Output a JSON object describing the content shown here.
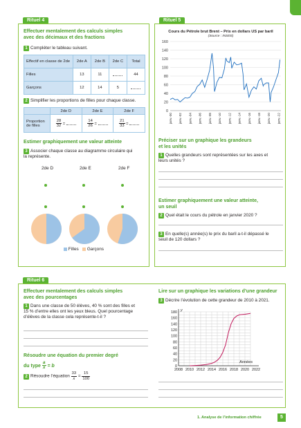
{
  "rituel4": {
    "tag": "Rituel 4",
    "title_line1": "Effectuer mentalement des calculs simples",
    "title_line2": "avec des décimaux et des fractions",
    "q1_num": "1",
    "q1": "Compléter le tableau suivant.",
    "table1": {
      "headers": [
        "Effectif en classe de 2de",
        "2de A",
        "2de B",
        "2de C",
        "Total"
      ],
      "rows": [
        {
          "label": "Filles",
          "values": [
            "13",
            "11",
            "",
            "44"
          ]
        },
        {
          "label": "Garçons",
          "values": [
            "12",
            "14",
            "5",
            ""
          ]
        }
      ]
    },
    "q2_num": "2",
    "q2": "Simplifier les proportions de filles pour chaque classe.",
    "table2": {
      "headers": [
        "",
        "2de D",
        "2de E",
        "2de F"
      ],
      "row_label_line1": "Proportion",
      "row_label_line2": "de filles",
      "fractions": [
        {
          "n": "28",
          "d": "32"
        },
        {
          "n": "14",
          "d": "26"
        },
        {
          "n": "21",
          "d": "33"
        }
      ],
      "eq": "="
    },
    "sub_title": "Estimer graphiquement une valeur atteinte",
    "q3_num": "3",
    "q3_line1": "Associer chaque classe au diagramme circulaire qui",
    "q3_line2": "la représente.",
    "classes": [
      "2de D",
      "2de E",
      "2de F"
    ],
    "pies": [
      {
        "filles": 0.5
      },
      {
        "filles": 0.65
      },
      {
        "filles": 0.55
      }
    ],
    "legend": [
      "Filles",
      "Garçons"
    ],
    "colors": {
      "filles": "#9dc3e6",
      "garcons": "#f8cba0"
    }
  },
  "rituel5": {
    "tag": "Rituel 5",
    "chart_title": "Cours du Pétrole brut Brent – Prix en dollars US par baril",
    "chart_source": "(Source : INSEE)",
    "sub1_line1": "Préciser sur un graphique les grandeurs",
    "sub1_line2": "et les unités",
    "q1_num": "1",
    "q1_line1": "Quelles grandeurs sont représentées sur les axes et",
    "q1_line2": "leurs unités ?",
    "sub2_line1": "Estimer graphiquement une valeur atteinte,",
    "sub2_line2": "un seuil",
    "q2_num": "2",
    "q2": "Quel était le cours du pétrole en janvier 2020 ?",
    "q3_num": "3",
    "q3_line1": "En quelle(s) année(s) le prix du baril a-t-il dépassé le",
    "q3_line2": "seuil de 120 dollars ?"
  },
  "rituel6": {
    "tag": "Rituel 6",
    "title_line1": "Effectuer mentalement des calculs simples",
    "title_line2": "avec des pourcentages",
    "q1_num": "1",
    "q1_line1": "Dans une classe de 50 élèves, 40 % sont des filles et",
    "q1_line2": "15 % d’entre elles ont les yeux bleus. Quel pourcentage",
    "q1_line3": "d’élèves de la classe cela représente-t-il ?",
    "sub_line1": "Résoudre une équation du premier degré",
    "sub_line2_pre": "du type",
    "sub_frac_n": "a",
    "sub_frac_d": "x",
    "sub_line2_post": "= b",
    "q2_num": "2",
    "q2_pre": "Résoudre l’équation",
    "q2_lhs_n": "33",
    "q2_lhs_d": "x",
    "q2_eq": "=",
    "q2_rhs_n": "15",
    "q2_rhs_d": "100",
    "sub_right": "Lire sur un graphique les variations d’une grandeur",
    "q3_num": "3",
    "q3": "Décrire l’évolution de cette grandeur de 2010 à 2021."
  },
  "footer": {
    "text": "1. Analyse de l’information chiffrée",
    "page": "5"
  },
  "chart_data": [
    {
      "type": "line",
      "title": "Cours du Pétrole brut Brent – Prix en dollars US par baril",
      "subtitle": "(Source : INSEE)",
      "ylim": [
        0,
        160
      ],
      "yticks": [
        0,
        20,
        40,
        60,
        80,
        100,
        120,
        140,
        160
      ],
      "x_tick_labels": [
        "janv.-00",
        "janv.-02",
        "janv.-04",
        "janv.-06",
        "janv.-08",
        "janv.-10",
        "janv.-12",
        "janv.-14",
        "janv.-16",
        "janv.-18",
        "janv.-20",
        "janv.-22"
      ],
      "grid": true,
      "line_color": "#1f6fbf",
      "x": [
        2000,
        2000.5,
        2001,
        2001.5,
        2002,
        2002.5,
        2003,
        2003.5,
        2004,
        2004.5,
        2005,
        2005.5,
        2006,
        2006.5,
        2007,
        2007.5,
        2008,
        2008.5,
        2008.8,
        2009,
        2009.5,
        2010,
        2010.5,
        2011,
        2011.3,
        2011.5,
        2012,
        2012.3,
        2012.5,
        2013,
        2013.5,
        2014,
        2014.5,
        2014.8,
        2015,
        2015.5,
        2016,
        2016.5,
        2017,
        2017.5,
        2018,
        2018.5,
        2018.9,
        2019,
        2019.5,
        2020,
        2020.3,
        2020.5,
        2021,
        2021.5,
        2022,
        2022.3
      ],
      "y": [
        26,
        29,
        25,
        26,
        20,
        25,
        30,
        29,
        31,
        40,
        44,
        56,
        61,
        71,
        54,
        72,
        93,
        133,
        98,
        44,
        66,
        77,
        76,
        96,
        122,
        115,
        111,
        124,
        98,
        112,
        106,
        107,
        110,
        85,
        48,
        62,
        31,
        47,
        55,
        50,
        69,
        75,
        57,
        60,
        64,
        64,
        20,
        42,
        55,
        72,
        88,
        118
      ]
    },
    {
      "type": "line",
      "title": "",
      "xlabel": "Années",
      "ylabel": "y",
      "xlim": [
        2008,
        2022
      ],
      "xticks": [
        2008,
        2010,
        2012,
        2014,
        2016,
        2018,
        2020,
        2022
      ],
      "ylim": [
        0,
        180
      ],
      "yticks": [
        0,
        20,
        40,
        60,
        80,
        100,
        120,
        140,
        160,
        180
      ],
      "grid": true,
      "line_color": "#c2185b",
      "x": [
        2010,
        2011,
        2012,
        2013,
        2014,
        2014.5,
        2015,
        2015.5,
        2016,
        2016.5,
        2017,
        2017.5,
        2018,
        2018.5,
        2019,
        2020,
        2021
      ],
      "y": [
        0,
        1,
        2,
        4,
        8,
        12,
        18,
        28,
        45,
        70,
        110,
        140,
        158,
        166,
        170,
        172,
        175
      ]
    }
  ]
}
